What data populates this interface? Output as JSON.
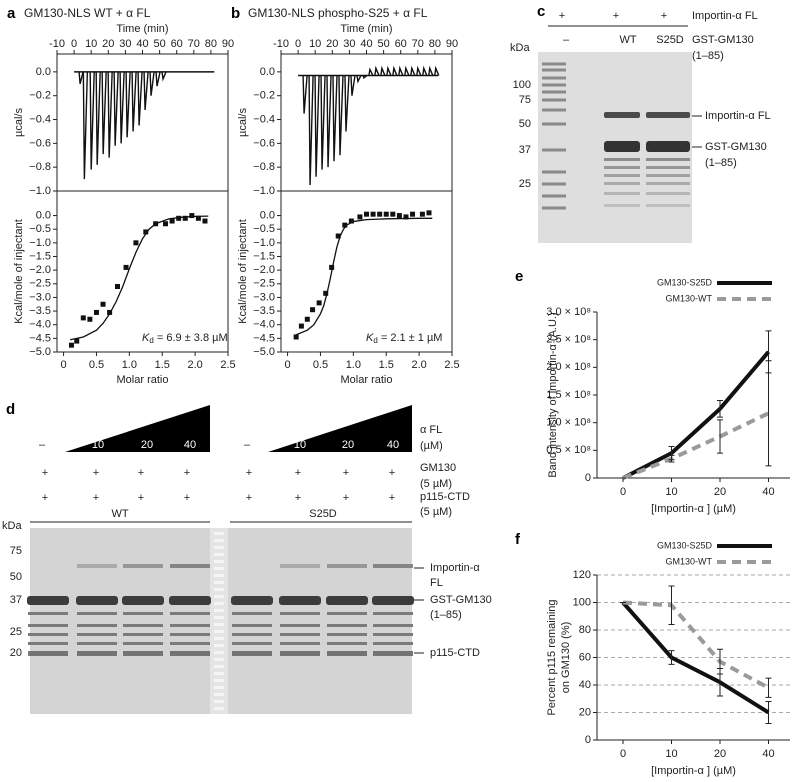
{
  "chart_data": [
    {
      "type": "thermogram",
      "panel": "a",
      "title": "GM130-NLS WT + α FL",
      "xlabel": "Time (min)",
      "ylabel": "µcal/s",
      "xlim": [
        -10,
        90
      ],
      "xticks": [
        -10,
        0,
        10,
        20,
        30,
        40,
        50,
        60,
        70,
        80,
        90
      ],
      "ylim": [
        -1.0,
        0.15
      ],
      "yticks": [
        {
          "value": 0,
          "label": "0.0"
        },
        {
          "value": -0.2,
          "label": "−0.2"
        },
        {
          "value": -0.4,
          "label": "−0.4"
        },
        {
          "value": -0.6,
          "label": "−0.6"
        },
        {
          "value": -0.8,
          "label": "−0.8"
        },
        {
          "value": -1.0,
          "label": "−1.0"
        }
      ],
      "baseline": {
        "x": [
          0,
          82
        ],
        "values": [
          0,
          0
        ]
      },
      "x": [
        3.5,
        6,
        10,
        13.5,
        17,
        20.5,
        24,
        27.5,
        31,
        34.5,
        38,
        41.5,
        45,
        48.5,
        52
      ],
      "values": [
        -0.1,
        -0.9,
        -0.82,
        -0.78,
        -0.69,
        -0.72,
        -0.62,
        -0.6,
        -0.55,
        -0.5,
        -0.45,
        -0.32,
        -0.2,
        -0.12,
        -0.06
      ]
    },
    {
      "type": "scatter",
      "xlabel": "Molar ratio",
      "ylabel": "Kcal/mole of injectant",
      "xlim": [
        -0.1,
        2.5
      ],
      "xticks": [
        0,
        0.5,
        {
          "value": 1,
          "label": "1.0"
        },
        1.5,
        {
          "value": 2,
          "label": "2.0"
        },
        2.5
      ],
      "ylim": [
        -5.0,
        0.9
      ],
      "yticks": [
        {
          "value": 0,
          "label": "0.0"
        },
        {
          "value": -0.5,
          "label": "−0.5"
        },
        {
          "value": -1.0,
          "label": "−1.0"
        },
        {
          "value": -1.5,
          "label": "−1.5"
        },
        {
          "value": -2.0,
          "label": "−2.0"
        },
        {
          "value": -2.5,
          "label": "−2.5"
        },
        {
          "value": -3.0,
          "label": "−3.0"
        },
        {
          "value": -3.5,
          "label": "−3.5"
        },
        {
          "value": -4.0,
          "label": "−4.0"
        },
        {
          "value": -4.5,
          "label": "−4.5"
        },
        {
          "value": -5.0,
          "label": "−5.0"
        }
      ],
      "x": [
        0.12,
        0.2,
        0.3,
        0.4,
        0.5,
        0.6,
        0.7,
        0.82,
        0.95,
        1.1,
        1.25,
        1.4,
        1.55,
        1.65,
        1.75,
        1.85,
        1.95,
        2.05,
        2.15
      ],
      "values": [
        -4.75,
        -4.6,
        -3.75,
        -3.8,
        -3.55,
        -3.25,
        -3.55,
        -2.6,
        -1.9,
        -1.0,
        -0.6,
        -0.3,
        -0.3,
        -0.2,
        -0.1,
        -0.1,
        0.0,
        -0.1,
        -0.2
      ],
      "fit": {
        "x": [
          0.1,
          0.3,
          0.5,
          0.6,
          0.7,
          0.8,
          0.9,
          1.0,
          1.1,
          1.2,
          1.3,
          1.4,
          1.6,
          1.8,
          2.0,
          2.2
        ],
        "values": [
          -4.55,
          -4.45,
          -4.2,
          -3.95,
          -3.6,
          -3.15,
          -2.6,
          -1.95,
          -1.35,
          -0.85,
          -0.5,
          -0.3,
          -0.12,
          -0.06,
          -0.03,
          -0.02
        ]
      },
      "annotation": {
        "symbol": "K",
        "subscript": "d",
        "text": " = 6.9 ± 3.8 µM"
      }
    },
    {
      "type": "thermogram",
      "panel": "b",
      "title": "GM130-NLS phospho-S25 + α FL",
      "xlabel": "Time (min)",
      "ylabel": "µcal/s",
      "xlim": [
        -10,
        90
      ],
      "xticks": [
        -10,
        0,
        10,
        20,
        30,
        40,
        50,
        60,
        70,
        80,
        90
      ],
      "ylim": [
        -1.0,
        0.15
      ],
      "yticks": [
        {
          "value": 0,
          "label": "0.0"
        },
        {
          "value": -0.2,
          "label": "−0.2"
        },
        {
          "value": -0.4,
          "label": "−0.4"
        },
        {
          "value": -0.6,
          "label": "−0.6"
        },
        {
          "value": -0.8,
          "label": "−0.8"
        },
        {
          "value": -1.0,
          "label": "−1.0"
        }
      ],
      "baseline": {
        "x": [
          0,
          82
        ],
        "values": [
          -0.03,
          -0.03
        ]
      },
      "x": [
        3.5,
        7,
        10.5,
        14,
        17.5,
        21,
        24.5,
        28,
        31.5,
        35,
        38.5,
        42,
        45.5,
        49,
        52.5,
        56,
        59.5,
        63,
        66.5,
        70,
        73.5,
        77,
        80.5
      ],
      "values": [
        -0.35,
        -0.95,
        -0.88,
        -0.82,
        -0.8,
        -0.75,
        -0.7,
        -0.5,
        -0.2,
        -0.08,
        -0.05,
        0.02,
        0.03,
        0.03,
        0.03,
        0.03,
        0.03,
        0.03,
        0.03,
        0.03,
        0.03,
        0.03,
        0.03
      ]
    },
    {
      "type": "scatter",
      "xlabel": "Molar ratio",
      "ylabel": "Kcal/mole of injectant",
      "xlim": [
        -0.1,
        2.5
      ],
      "xticks": [
        0,
        0.5,
        {
          "value": 1,
          "label": "1.0"
        },
        1.5,
        {
          "value": 2,
          "label": "2.0"
        },
        2.5
      ],
      "ylim": [
        -5.0,
        0.9
      ],
      "yticks": [
        {
          "value": 0,
          "label": "0.0"
        },
        {
          "value": -0.5,
          "label": "−0.5"
        },
        {
          "value": -1.0,
          "label": "−1.0"
        },
        {
          "value": -1.5,
          "label": "−1.5"
        },
        {
          "value": -2.0,
          "label": "−2.0"
        },
        {
          "value": -2.5,
          "label": "−2.5"
        },
        {
          "value": -3.0,
          "label": "−3.0"
        },
        {
          "value": -3.5,
          "label": "−3.5"
        },
        {
          "value": -4.0,
          "label": "−4.0"
        },
        {
          "value": -4.5,
          "label": "−4.5"
        },
        {
          "value": -5.0,
          "label": "−5.0"
        }
      ],
      "x": [
        0.13,
        0.21,
        0.3,
        0.38,
        0.48,
        0.58,
        0.67,
        0.77,
        0.87,
        0.97,
        1.1,
        1.2,
        1.3,
        1.4,
        1.5,
        1.6,
        1.7,
        1.8,
        1.9,
        2.05,
        2.15
      ],
      "values": [
        -4.45,
        -4.05,
        -3.8,
        -3.45,
        -3.2,
        -2.85,
        -1.9,
        -0.75,
        -0.35,
        -0.2,
        -0.05,
        0.05,
        0.05,
        0.05,
        0.05,
        0.05,
        0.0,
        -0.05,
        0.05,
        0.05,
        0.1
      ],
      "fit": {
        "x": [
          0.1,
          0.3,
          0.4,
          0.5,
          0.55,
          0.6,
          0.65,
          0.7,
          0.75,
          0.8,
          0.85,
          0.9,
          1.0,
          1.2,
          1.5,
          2.0,
          2.2
        ],
        "values": [
          -4.4,
          -4.2,
          -4.0,
          -3.6,
          -3.3,
          -2.85,
          -2.3,
          -1.7,
          -1.15,
          -0.75,
          -0.5,
          -0.35,
          -0.22,
          -0.15,
          -0.12,
          -0.1,
          -0.1
        ]
      },
      "annotation": {
        "symbol": "K",
        "subscript": "d",
        "text": " = 2.1 ± 1 µM"
      }
    },
    {
      "type": "line",
      "panel": "e",
      "ylabel": "Band intensity of importin-α (A.U.)",
      "xlabel": "[Importin-α ] (µM)",
      "categories": [
        "0",
        "10",
        "20",
        "40"
      ],
      "ylim": [
        0,
        300000000
      ],
      "yticks": [
        0,
        {
          "value": 50000000,
          "label": "0.5 × 10⁸"
        },
        {
          "value": 100000000,
          "label": "1.0 × 10⁸"
        },
        {
          "value": 150000000,
          "label": "1.5 × 10⁸"
        },
        {
          "value": 200000000,
          "label": "2.0 × 10⁸"
        },
        {
          "value": 250000000,
          "label": "2.5 × 10⁸"
        },
        {
          "value": 300000000,
          "label": "3.0 × 10⁸"
        }
      ],
      "grid": false,
      "legend": "top-right",
      "series": [
        {
          "name": "GM130-S25D",
          "color": "#111111",
          "line_style": "solid",
          "values": [
            0,
            45000000,
            125000000,
            228000000
          ],
          "errors": [
            0,
            12000000,
            15000000,
            38000000
          ]
        },
        {
          "name": "GM130-WT",
          "color": "#9a9a9a",
          "line_style": "dashed",
          "values": [
            0,
            35000000,
            75000000,
            117000000
          ],
          "errors": [
            0,
            6000000,
            30000000,
            95000000
          ]
        }
      ]
    },
    {
      "type": "line",
      "panel": "f",
      "ylabel": [
        "Percent p115 remaining",
        "on GM130 (%)"
      ],
      "xlabel": "[Importin-α ] (µM)",
      "categories": [
        "0",
        "10",
        "20",
        "40"
      ],
      "ylim": [
        0,
        120
      ],
      "yticks": [
        0,
        20,
        40,
        60,
        80,
        100,
        120
      ],
      "grid": true,
      "legend": "top-right",
      "series": [
        {
          "name": "GM130-S25D",
          "color": "#111111",
          "line_style": "solid",
          "values": [
            100,
            60,
            42,
            20
          ],
          "errors": [
            0,
            5,
            10,
            8
          ]
        },
        {
          "name": "GM130-WT",
          "color": "#9a9a9a",
          "line_style": "dashed",
          "values": [
            100,
            98,
            57,
            38
          ],
          "errors": [
            0,
            14,
            9,
            7
          ]
        }
      ]
    }
  ],
  "gel_c": {
    "panel": "c",
    "rows": [
      {
        "label": "Importin-α FL",
        "lanes": [
          "+",
          "+",
          "+"
        ]
      },
      {
        "label": "GST-GM130",
        "sublabel": "(1–85)",
        "lanes": [
          "–",
          "WT",
          "S25D"
        ]
      }
    ],
    "mw_unit": "kDa",
    "markers": [
      "100",
      "75",
      "50",
      "37",
      "25"
    ],
    "band_labels": [
      {
        "label": "Importin-α FL"
      },
      {
        "label": "GST-GM130",
        "sublabel": "(1–85)"
      }
    ]
  },
  "gel_d": {
    "panel": "d",
    "titration": {
      "label": "α FL",
      "unit": "(µM)",
      "groups": [
        [
          "–",
          "10",
          "20",
          "40"
        ],
        [
          "–",
          "10",
          "20",
          "40"
        ]
      ]
    },
    "rows": [
      {
        "label": "GM130",
        "sublabel": "(5 µM)",
        "marks": [
          "+",
          "+",
          "+",
          "+",
          "+",
          "+",
          "+",
          "+"
        ]
      },
      {
        "label": "p115-CTD",
        "sublabel": "(5 µM)",
        "marks": [
          "+",
          "+",
          "+",
          "+",
          "+",
          "+",
          "+",
          "+"
        ]
      }
    ],
    "groups": [
      "WT",
      "S25D"
    ],
    "mw_unit": "kDa",
    "markers": [
      "75",
      "50",
      "37",
      "25",
      "20"
    ],
    "band_labels": [
      {
        "label": "Importin-α",
        "sublabel": "FL"
      },
      {
        "label": "GST-GM130",
        "sublabel": "(1–85)"
      },
      {
        "label": "p115-CTD"
      }
    ]
  }
}
